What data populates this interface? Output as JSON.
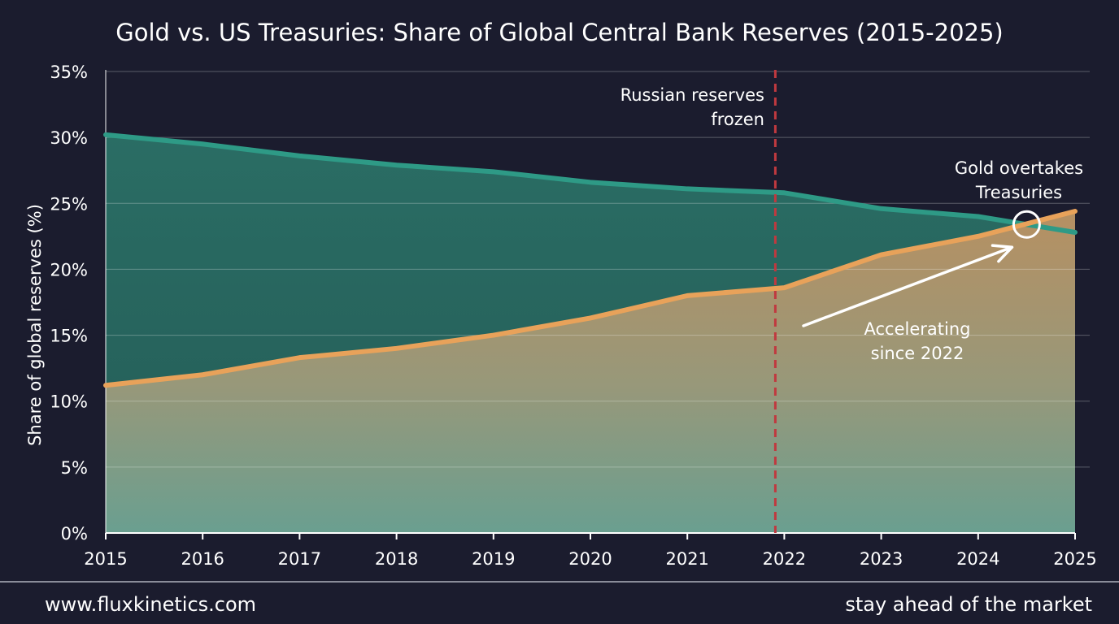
{
  "chart_data": {
    "type": "area",
    "title": "Gold vs. US Treasuries: Share of Global Central Bank Reserves (2015-2025)",
    "xlabel": "",
    "ylabel": "Share of global reserves (%)",
    "categories": [
      "2015",
      "2016",
      "2017",
      "2018",
      "2019",
      "2020",
      "2021",
      "2022",
      "2023",
      "2024",
      "2025"
    ],
    "ylim": [
      0,
      35
    ],
    "yticks": [
      0,
      5,
      10,
      15,
      20,
      25,
      30,
      35
    ],
    "ytick_labels": [
      "0%",
      "5%",
      "10%",
      "15%",
      "20%",
      "25%",
      "30%",
      "35%"
    ],
    "series": [
      {
        "name": "US Treasuries",
        "color": "#2e9a86",
        "values": [
          30.2,
          29.5,
          28.6,
          27.9,
          27.4,
          26.6,
          26.1,
          25.8,
          24.6,
          24.0,
          22.8
        ]
      },
      {
        "name": "Gold",
        "color": "#e8a25a",
        "values": [
          11.2,
          12.0,
          13.3,
          14.0,
          15.0,
          16.3,
          18.0,
          18.6,
          21.1,
          22.5,
          24.4
        ]
      }
    ],
    "grid": true,
    "annotations": {
      "event_year": "2022",
      "event_label_line1": "Russian reserves",
      "event_label_line2": "frozen",
      "event_color": "#c0393f",
      "crossover_label_line1": "Gold overtakes",
      "crossover_label_line2": "Treasuries",
      "crossover_year": 2024.5,
      "crossover_value": 23.4,
      "trend_label_line1": "Accelerating",
      "trend_label_line2": "since 2022"
    }
  },
  "footer": {
    "website": "www.fluxkinetics.com",
    "tagline": "stay ahead of the market"
  }
}
